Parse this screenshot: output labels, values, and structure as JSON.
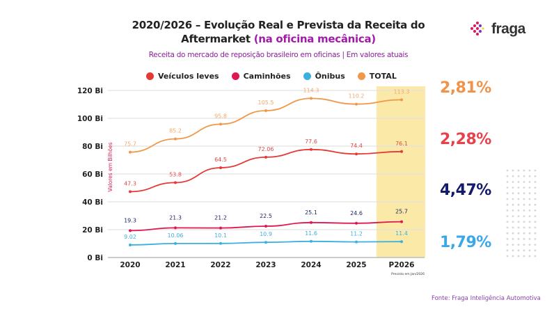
{
  "header": {
    "title_main": "2020/2026 – Evolução Real e Prevista da Receita do Aftermarket",
    "title_highlight": "(na oficina mecânica)",
    "subtitle": "Receita do mercado de reposição brasileiro em oficinas | Em valores atuais"
  },
  "logo": {
    "text": "fraga"
  },
  "growth_rates": [
    {
      "value": "2,81%",
      "color": "#f0934a"
    },
    {
      "value": "2,28%",
      "color": "#e8414a"
    },
    {
      "value": "4,47%",
      "color": "#141a6e"
    },
    {
      "value": "1,79%",
      "color": "#3aa8e6"
    }
  ],
  "source": "Fonte: Fraga Inteligência Automotiva",
  "chart_data": {
    "type": "line",
    "ylabel": "Valores em Bilhões",
    "ylim": [
      0,
      120
    ],
    "yticks": [
      "0 Bi",
      "20 Bi",
      "40 Bi",
      "60 Bi",
      "80 Bi",
      "100 Bi",
      "120 Bi"
    ],
    "ytick_values": [
      0,
      20,
      40,
      60,
      80,
      100,
      120
    ],
    "grid": true,
    "legend_position": "top",
    "categories": [
      "2020",
      "2021",
      "2022",
      "2023",
      "2024",
      "2025",
      "P2026"
    ],
    "forecast_note": "Previsto em Jan/2026",
    "highlight_category": "P2026",
    "highlight_color": "#fbe9a8",
    "series": [
      {
        "name": "Veículos leves",
        "color": "#e53935",
        "label_color": "#e04848",
        "values": [
          47.3,
          53.8,
          64.5,
          72.06,
          77.6,
          74.4,
          76.1
        ],
        "labels": [
          "47.3",
          "53.8",
          "64.5",
          "72.06",
          "77.6",
          "74.4",
          "76.1"
        ]
      },
      {
        "name": "Caminhões",
        "color": "#e0174f",
        "label_color": "#1b1f5e",
        "values": [
          19.3,
          21.3,
          21.2,
          22.5,
          25.1,
          24.6,
          25.7
        ],
        "labels": [
          "19.3",
          "21.3",
          "21.2",
          "22.5",
          "25.1",
          "24.6",
          "25.7"
        ]
      },
      {
        "name": "Ônibus",
        "color": "#3ab0e0",
        "label_color": "#3ab0e0",
        "values": [
          9.02,
          10.06,
          10.1,
          10.9,
          11.6,
          11.2,
          11.4
        ],
        "labels": [
          "9.02",
          "10.06",
          "10.1",
          "10.9",
          "11.6",
          "11.2",
          "11.4"
        ]
      },
      {
        "name": "TOTAL",
        "color": "#f0974a",
        "label_color": "#f2a86a",
        "values": [
          75.7,
          85.2,
          95.8,
          105.5,
          114.3,
          110.2,
          113.3
        ],
        "labels": [
          "75.7",
          "85.2",
          "95.8",
          "105.5",
          "114.3",
          "110.2",
          "113.3"
        ]
      }
    ]
  }
}
